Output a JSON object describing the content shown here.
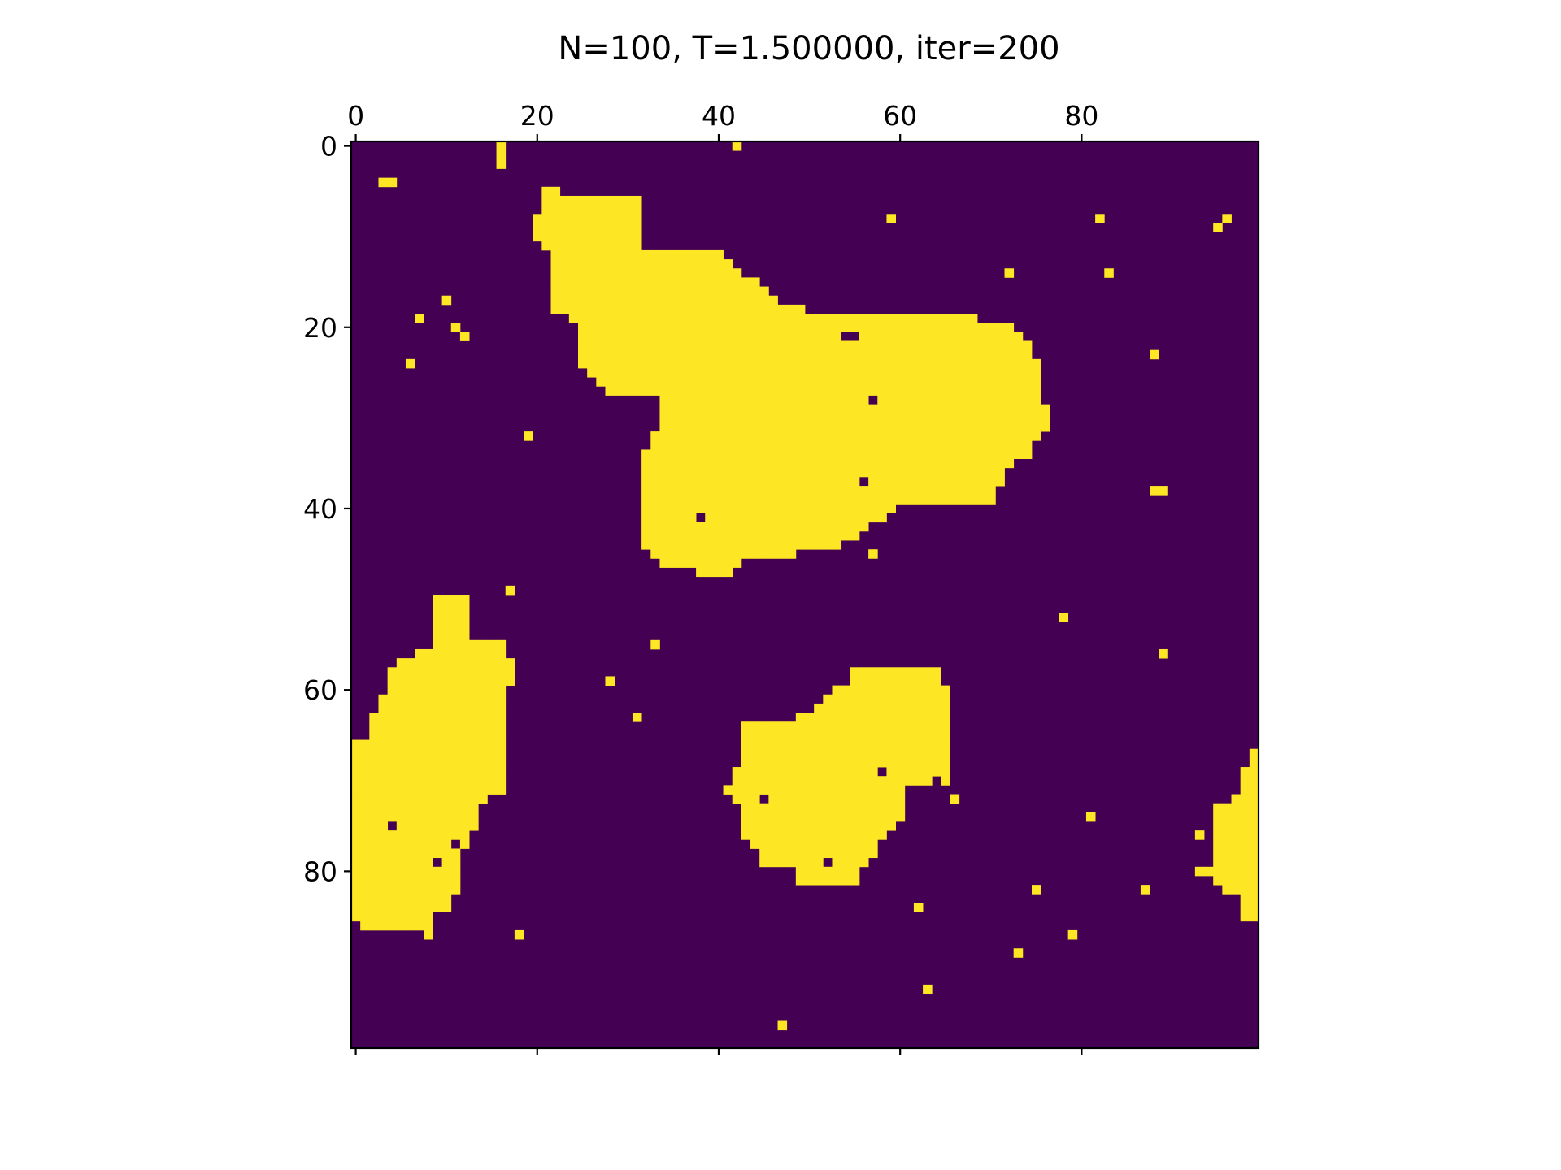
{
  "chart_data": {
    "type": "heatmap",
    "title": "N=100, T=1.500000, iter=200",
    "xlabel": "",
    "ylabel": "",
    "grid": false,
    "legend": "none",
    "x_axis_position": "top",
    "y_axis_inverted": true,
    "xlim": [
      -0.5,
      99.5
    ],
    "ylim": [
      99.5,
      -0.5
    ],
    "x_ticks": [
      0,
      20,
      40,
      60,
      80
    ],
    "y_ticks": [
      0,
      20,
      40,
      60,
      80
    ],
    "x_tick_labels": [
      "0",
      "20",
      "40",
      "60",
      "80"
    ],
    "y_tick_labels": [
      "0",
      "20",
      "40",
      "60",
      "80"
    ],
    "size": 100,
    "values_legend": {
      "0": "spin -1 (background)",
      "1": "spin +1"
    },
    "colors": {
      "0": "#440154",
      "1": "#fde725"
    },
    "background_value": 0,
    "plus_cells": [
      [
        16,
        0
      ],
      [
        16,
        1
      ],
      [
        16,
        2
      ],
      [
        42,
        0
      ],
      [
        3,
        4
      ],
      [
        4,
        4
      ],
      [
        59,
        8
      ],
      [
        82,
        8
      ],
      [
        96,
        8
      ],
      [
        95,
        9
      ],
      [
        72,
        14
      ],
      [
        83,
        14
      ],
      [
        10,
        17
      ],
      [
        7,
        19
      ],
      [
        11,
        20
      ],
      [
        12,
        21
      ],
      [
        6,
        24
      ],
      [
        88,
        23
      ],
      [
        19,
        32
      ],
      [
        57,
        28
      ],
      [
        88,
        38
      ],
      [
        89,
        38
      ],
      [
        17,
        49
      ],
      [
        57,
        45
      ],
      [
        78,
        52
      ],
      [
        33,
        55
      ],
      [
        89,
        56
      ],
      [
        28,
        59
      ],
      [
        31,
        63
      ],
      [
        66,
        72
      ],
      [
        81,
        74
      ],
      [
        75,
        82
      ],
      [
        87,
        82
      ],
      [
        62,
        84
      ],
      [
        18,
        87
      ],
      [
        79,
        87
      ],
      [
        73,
        89
      ],
      [
        63,
        93
      ],
      [
        47,
        97
      ],
      [
        16,
        71
      ],
      [
        8,
        80
      ],
      [
        93,
        76
      ]
    ],
    "plus_runs": [
      [
        5,
        21,
        22
      ],
      [
        6,
        21,
        31
      ],
      [
        7,
        21,
        31
      ],
      [
        8,
        20,
        31
      ],
      [
        9,
        20,
        31
      ],
      [
        10,
        20,
        31
      ],
      [
        11,
        21,
        31
      ],
      [
        12,
        22,
        40
      ],
      [
        13,
        22,
        41
      ],
      [
        14,
        22,
        42
      ],
      [
        15,
        22,
        44
      ],
      [
        16,
        22,
        45
      ],
      [
        17,
        22,
        46
      ],
      [
        18,
        22,
        49
      ],
      [
        19,
        24,
        68
      ],
      [
        20,
        25,
        72
      ],
      [
        21,
        25,
        73
      ],
      [
        22,
        25,
        74
      ],
      [
        23,
        25,
        74
      ],
      [
        24,
        25,
        75
      ],
      [
        25,
        26,
        75
      ],
      [
        26,
        27,
        75
      ],
      [
        27,
        28,
        75
      ],
      [
        28,
        34,
        75
      ],
      [
        29,
        34,
        76
      ],
      [
        30,
        34,
        76
      ],
      [
        31,
        34,
        76
      ],
      [
        32,
        33,
        75
      ],
      [
        33,
        33,
        74
      ],
      [
        34,
        32,
        74
      ],
      [
        35,
        32,
        72
      ],
      [
        36,
        32,
        71
      ],
      [
        37,
        32,
        71
      ],
      [
        38,
        32,
        70
      ],
      [
        39,
        32,
        70
      ],
      [
        40,
        32,
        59
      ],
      [
        41,
        32,
        58
      ],
      [
        42,
        32,
        56
      ],
      [
        43,
        32,
        55
      ],
      [
        44,
        32,
        53
      ],
      [
        45,
        33,
        48
      ],
      [
        46,
        34,
        42
      ],
      [
        47,
        38,
        41
      ],
      [
        50,
        9,
        12
      ],
      [
        51,
        9,
        12
      ],
      [
        52,
        9,
        12
      ],
      [
        53,
        9,
        12
      ],
      [
        54,
        9,
        12
      ],
      [
        55,
        9,
        16
      ],
      [
        56,
        7,
        16
      ],
      [
        57,
        5,
        17
      ],
      [
        58,
        4,
        17
      ],
      [
        59,
        4,
        17
      ],
      [
        60,
        4,
        16
      ],
      [
        61,
        3,
        16
      ],
      [
        62,
        3,
        16
      ],
      [
        63,
        2,
        16
      ],
      [
        64,
        2,
        16
      ],
      [
        65,
        2,
        16
      ],
      [
        66,
        0,
        16
      ],
      [
        67,
        0,
        16
      ],
      [
        68,
        0,
        16
      ],
      [
        69,
        0,
        16
      ],
      [
        70,
        0,
        16
      ],
      [
        71,
        0,
        15
      ],
      [
        72,
        0,
        14
      ],
      [
        73,
        0,
        13
      ],
      [
        74,
        0,
        13
      ],
      [
        75,
        0,
        13
      ],
      [
        76,
        0,
        12
      ],
      [
        77,
        0,
        12
      ],
      [
        78,
        0,
        11
      ],
      [
        79,
        0,
        11
      ],
      [
        80,
        0,
        11
      ],
      [
        81,
        0,
        11
      ],
      [
        82,
        0,
        11
      ],
      [
        83,
        0,
        10
      ],
      [
        84,
        0,
        10
      ],
      [
        85,
        0,
        8
      ],
      [
        86,
        1,
        8
      ],
      [
        87,
        8,
        8
      ],
      [
        58,
        55,
        64
      ],
      [
        59,
        55,
        64
      ],
      [
        60,
        53,
        65
      ],
      [
        61,
        52,
        65
      ],
      [
        62,
        51,
        65
      ],
      [
        63,
        49,
        65
      ],
      [
        64,
        43,
        65
      ],
      [
        65,
        43,
        65
      ],
      [
        66,
        43,
        65
      ],
      [
        67,
        43,
        65
      ],
      [
        68,
        43,
        65
      ],
      [
        69,
        42,
        65
      ],
      [
        70,
        42,
        65
      ],
      [
        71,
        41,
        60
      ],
      [
        72,
        42,
        60
      ],
      [
        73,
        43,
        60
      ],
      [
        74,
        43,
        60
      ],
      [
        75,
        43,
        59
      ],
      [
        76,
        43,
        58
      ],
      [
        77,
        44,
        57
      ],
      [
        78,
        45,
        57
      ],
      [
        79,
        45,
        56
      ],
      [
        80,
        49,
        55
      ],
      [
        81,
        49,
        55
      ],
      [
        67,
        99,
        99
      ],
      [
        68,
        99,
        99
      ],
      [
        69,
        98,
        99
      ],
      [
        70,
        98,
        99
      ],
      [
        71,
        98,
        99
      ],
      [
        72,
        97,
        99
      ],
      [
        73,
        95,
        99
      ],
      [
        74,
        95,
        99
      ],
      [
        75,
        95,
        99
      ],
      [
        76,
        95,
        99
      ],
      [
        77,
        95,
        99
      ],
      [
        78,
        95,
        99
      ],
      [
        79,
        95,
        99
      ],
      [
        80,
        93,
        99
      ],
      [
        81,
        95,
        99
      ],
      [
        82,
        96,
        99
      ],
      [
        83,
        98,
        99
      ],
      [
        84,
        98,
        99
      ],
      [
        85,
        98,
        99
      ]
    ],
    "minus_cells": [
      [
        54,
        21
      ],
      [
        55,
        21
      ],
      [
        57,
        28
      ],
      [
        38,
        41
      ],
      [
        45,
        46
      ],
      [
        46,
        46
      ],
      [
        56,
        37
      ],
      [
        45,
        72
      ],
      [
        58,
        69
      ],
      [
        52,
        79
      ],
      [
        4,
        75
      ],
      [
        9,
        79
      ],
      [
        64,
        70
      ],
      [
        11,
        77
      ]
    ]
  }
}
